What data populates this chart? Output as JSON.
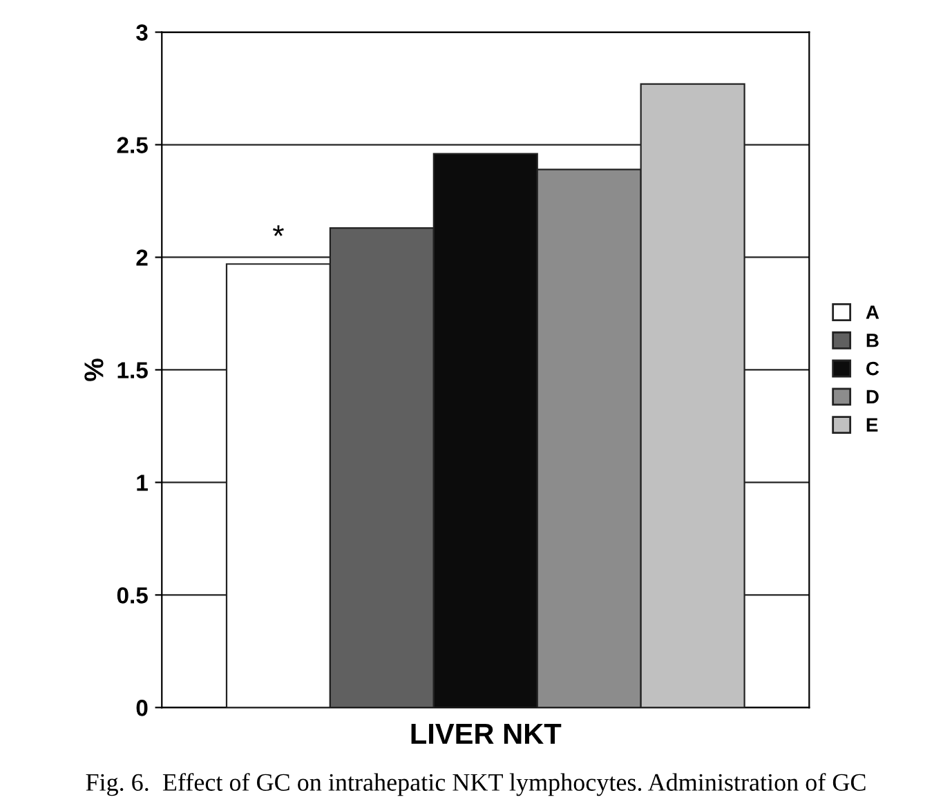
{
  "chart_data": {
    "type": "bar",
    "categories": [
      "LIVER NKT"
    ],
    "ylabel": "%",
    "series": [
      {
        "name": "A",
        "color": "#ffffff",
        "values": [
          1.97
        ]
      },
      {
        "name": "B",
        "color": "#606060",
        "values": [
          2.13
        ]
      },
      {
        "name": "C",
        "color": "#0c0c0c",
        "values": [
          2.46
        ]
      },
      {
        "name": "D",
        "color": "#8c8c8c",
        "values": [
          2.39
        ]
      },
      {
        "name": "E",
        "color": "#c0c0c0",
        "values": [
          2.77
        ]
      }
    ],
    "ylim": [
      0,
      3
    ],
    "yticks": [
      0,
      0.5,
      1,
      1.5,
      2,
      2.5,
      3
    ],
    "grid": "y",
    "legend": "right",
    "annotations": [
      "*",
      "Fig. 6.  Effect of GC on intrahepatic NKT lymphocytes. Administration of GC"
    ]
  }
}
